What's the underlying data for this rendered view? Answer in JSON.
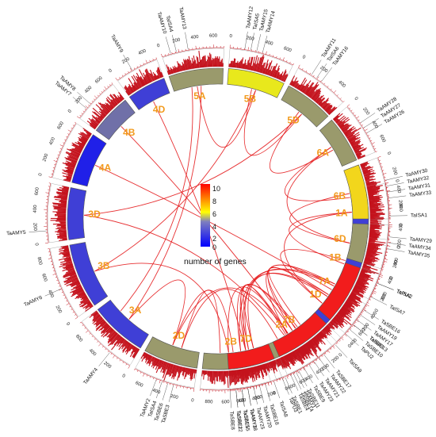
{
  "legend": {
    "title": "number of genes",
    "ticks": [
      "10",
      "8",
      "6",
      "4",
      "2",
      "0"
    ],
    "gradient": [
      "#0000ff",
      "#ffff00",
      "#ff0000"
    ]
  },
  "colors": {
    "link": "#e41a1c",
    "bar": "#c4121c",
    "label": "#f29a1c"
  },
  "chromosomes": [
    {
      "name": "1A",
      "start": 78,
      "end": 97,
      "color": "#3f3fd6",
      "ticks": [
        "0",
        "200",
        "400"
      ]
    },
    {
      "name": "1B",
      "start": 99,
      "end": 118,
      "color": "#3f3fd6",
      "ticks": [
        "0",
        "200",
        "400",
        "600"
      ]
    },
    {
      "name": "1D",
      "start": 120,
      "end": 136,
      "color": "#3f3fd6",
      "ticks": [
        "0",
        "200",
        "400"
      ]
    },
    {
      "name": "2A",
      "start": 138,
      "end": 160,
      "color": "#9a9a6c",
      "ticks": [
        "0",
        "200",
        "400",
        "600"
      ]
    },
    {
      "name": "2B",
      "start": 162,
      "end": 186,
      "color": "#9a9a6c",
      "ticks": [
        "0",
        "200",
        "400",
        "600",
        "800"
      ]
    },
    {
      "name": "2D",
      "start": 188,
      "end": 209,
      "color": "#9a9a6c",
      "ticks": [
        "0",
        "200",
        "400",
        "600"
      ]
    },
    {
      "name": "3A",
      "start": 211,
      "end": 233,
      "color": "#3f3fd6",
      "ticks": [
        "0",
        "200",
        "400",
        "600"
      ]
    },
    {
      "name": "3B",
      "start": 235,
      "end": 260,
      "color": "#3f3fd6",
      "ticks": [
        "0",
        "200",
        "400",
        "600",
        "800"
      ]
    },
    {
      "name": "3D",
      "start": 262,
      "end": 282,
      "color": "#3f3fd6",
      "ticks": [
        "0",
        "200",
        "400",
        "600"
      ]
    },
    {
      "name": "4A",
      "start": 284,
      "end": 304,
      "color": "#2020e8",
      "ticks": [
        "0",
        "200",
        "400",
        "600"
      ]
    },
    {
      "name": "4B",
      "start": 306,
      "end": 322,
      "color": "#7070a8",
      "ticks": [
        "0",
        "200",
        "400",
        "600"
      ]
    },
    {
      "name": "4D",
      "start": 324,
      "end": 339,
      "color": "#3f3fd6",
      "ticks": [
        "0",
        "200",
        "400"
      ]
    },
    {
      "name": "5A",
      "start": 341,
      "end": 362,
      "color": "#9a9a6c",
      "ticks": [
        "0",
        "200",
        "400",
        "600"
      ]
    },
    {
      "name": "5B",
      "start": 364,
      "end": 386,
      "color": "#e8e81c",
      "ticks": [
        "0",
        "200",
        "400",
        "600"
      ]
    },
    {
      "name": "5D",
      "start": 388,
      "end": 407,
      "color": "#9a9a6c",
      "ticks": [
        "0",
        "200",
        "400"
      ]
    },
    {
      "name": "6A",
      "start": 409,
      "end": 427,
      "color": "#9a9a6c",
      "ticks": [
        "0",
        "200",
        "400",
        "600"
      ]
    },
    {
      "name": "6B",
      "start": 429,
      "end": 450,
      "color": "#f2d61c",
      "ticks": [
        "0",
        "200",
        "400",
        "600"
      ]
    },
    {
      "name": "6D",
      "start": 452,
      "end": 467,
      "color": "#9a9a6c",
      "ticks": [
        "0",
        "200",
        "400"
      ]
    },
    {
      "name": "7A",
      "start": 469,
      "end": 492,
      "color": "#f21c1c",
      "ticks": [
        "0",
        "200",
        "400",
        "600"
      ]
    },
    {
      "name": "7B",
      "start": 494,
      "end": 516,
      "color": "#f21c1c",
      "ticks": [
        "0",
        "200",
        "400",
        "600"
      ]
    },
    {
      "name": "7D",
      "start": 518,
      "end": 536,
      "color": "#f21c1c",
      "ticks": [
        "0",
        "200",
        "400",
        "600"
      ]
    }
  ],
  "gene_labels": [
    {
      "text": "TaISA1",
      "angle": 89
    },
    {
      "text": "TaISA2",
      "angle": 112
    },
    {
      "text": "TaISA3",
      "angle": 128
    },
    {
      "text": "TaAMY1",
      "angle": 153
    },
    {
      "text": "TaSBE4",
      "angle": 155
    },
    {
      "text": "TaSBE1",
      "angle": 157
    },
    {
      "text": "TaAMY3",
      "angle": 170
    },
    {
      "text": "TaSBE5",
      "angle": 172
    },
    {
      "text": "TaSBE2",
      "angle": 174
    },
    {
      "text": "TaSBE3",
      "angle": 195
    },
    {
      "text": "TaSBE6",
      "angle": 197
    },
    {
      "text": "TaISA4",
      "angle": 199
    },
    {
      "text": "TaAMY2",
      "angle": 201
    },
    {
      "text": "TaAMY4",
      "angle": 219
    },
    {
      "text": "TaAMY6",
      "angle": 246
    },
    {
      "text": "TaAMY5",
      "angle": 266
    },
    {
      "text": "TaAMY7",
      "angle": 310
    },
    {
      "text": "TaAMY8",
      "angle": 312
    },
    {
      "text": "TaAMY9",
      "angle": 330
    },
    {
      "text": "TaAMY10",
      "angle": 344
    },
    {
      "text": "TaISA4",
      "angle": 346
    },
    {
      "text": "TaAMY13",
      "angle": 350
    },
    {
      "text": "TaAMY12",
      "angle": 369
    },
    {
      "text": "TaISA5",
      "angle": 371
    },
    {
      "text": "TaAMY15",
      "angle": 373
    },
    {
      "text": "TaAMY14",
      "angle": 375
    },
    {
      "text": "TaAMY11",
      "angle": 393
    },
    {
      "text": "TaISA6",
      "angle": 395
    },
    {
      "text": "TaAMY16",
      "angle": 397
    },
    {
      "text": "TaAMY28",
      "angle": 416
    },
    {
      "text": "TaAMY27",
      "angle": 418
    },
    {
      "text": "TaAMY26",
      "angle": 420
    },
    {
      "text": "TaAMY30",
      "angle": 437
    },
    {
      "text": "TaAMY32",
      "angle": 439
    },
    {
      "text": "TaAMY31",
      "angle": 441
    },
    {
      "text": "TaAMY33",
      "angle": 443
    },
    {
      "text": "TaAMY29",
      "angle": 456
    },
    {
      "text": "TaAMY34",
      "angle": 458
    },
    {
      "text": "TaAMY35",
      "angle": 460
    },
    {
      "text": "TaPU1",
      "angle": 472
    },
    {
      "text": "TaISA7",
      "angle": 477
    },
    {
      "text": "TaSBE16",
      "angle": 482
    },
    {
      "text": "TaAMY19",
      "angle": 484
    },
    {
      "text": "TaAMY17",
      "angle": 486
    },
    {
      "text": "TaSBE13",
      "angle": 488
    },
    {
      "text": "TaSBE10",
      "angle": 490
    },
    {
      "text": "TaPU2",
      "angle": 492
    },
    {
      "text": "TaISA9",
      "angle": 497
    },
    {
      "text": "TaSBE17",
      "angle": 502
    },
    {
      "text": "TaAMY22",
      "angle": 504
    },
    {
      "text": "TaAMY21",
      "angle": 506
    },
    {
      "text": "TaAMY23",
      "angle": 508
    },
    {
      "text": "TaSBE9",
      "angle": 510
    },
    {
      "text": "TaSBE11",
      "angle": 512
    },
    {
      "text": "TaSBE14",
      "angle": 514
    },
    {
      "text": "TaPU3",
      "angle": 518
    },
    {
      "text": "TaISA8",
      "angle": 521
    },
    {
      "text": "TaSBE18",
      "angle": 524
    },
    {
      "text": "TaAMY20",
      "angle": 526
    },
    {
      "text": "TaAMY25",
      "angle": 528
    },
    {
      "text": "TaAMY18",
      "angle": 530
    },
    {
      "text": "TaSBE15",
      "angle": 532
    },
    {
      "text": "TaSBE12",
      "angle": 534
    },
    {
      "text": "TaSBE8",
      "angle": 536
    }
  ],
  "links": [
    [
      "3A",
      "5A"
    ],
    [
      "3A",
      "5A"
    ],
    [
      "3B",
      "5B"
    ],
    [
      "3D",
      "5D"
    ],
    [
      "4A",
      "7A"
    ],
    [
      "4D",
      "7D"
    ],
    [
      "4B",
      "7B"
    ],
    [
      "2A",
      "2B"
    ],
    [
      "2A",
      "2D"
    ],
    [
      "2B",
      "2D"
    ],
    [
      "2A",
      "2D"
    ],
    [
      "2B",
      "2D"
    ],
    [
      "1A",
      "1B"
    ],
    [
      "1A",
      "1D"
    ],
    [
      "1B",
      "1D"
    ],
    [
      "5A",
      "5B"
    ],
    [
      "5B",
      "5D"
    ],
    [
      "5D",
      "6A"
    ],
    [
      "6A",
      "6D"
    ],
    [
      "6B",
      "6D"
    ],
    [
      "6A",
      "6B"
    ],
    [
      "7A",
      "7B"
    ],
    [
      "7A",
      "7D"
    ],
    [
      "7B",
      "7D"
    ],
    [
      "7A",
      "7B"
    ],
    [
      "7A",
      "7D"
    ],
    [
      "7B",
      "7D"
    ],
    [
      "7A",
      "7B"
    ],
    [
      "7A",
      "7D"
    ],
    [
      "7B",
      "7D"
    ],
    [
      "7A",
      "7D"
    ],
    [
      "7B",
      "7D"
    ],
    [
      "7A",
      "7B"
    ],
    [
      "3D",
      "2A"
    ],
    [
      "3B",
      "2B"
    ],
    [
      "3A",
      "2D"
    ]
  ]
}
